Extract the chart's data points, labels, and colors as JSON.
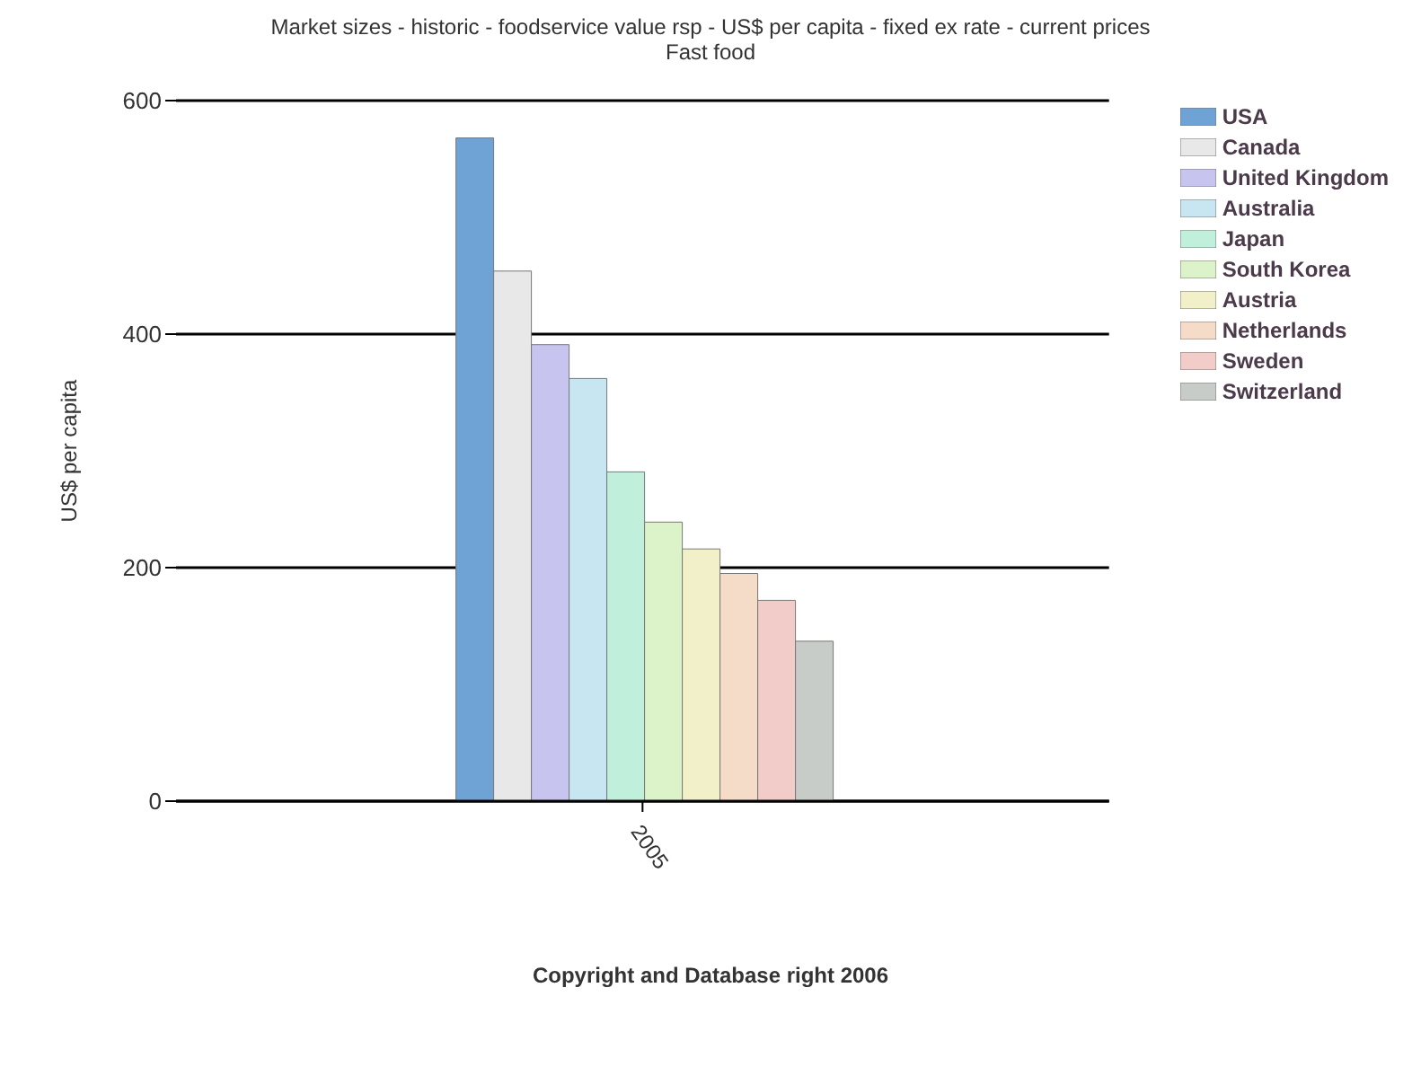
{
  "chart_data": {
    "type": "bar",
    "title": "Market sizes  - historic  - foodservice value rsp  - US$ per capita  - fixed ex rate  - current prices",
    "subtitle": "Fast food",
    "ylabel": "US$ per capita",
    "categories": [
      "2005"
    ],
    "series": [
      {
        "name": "USA",
        "color": "#6fa3d6",
        "values": [
          568
        ]
      },
      {
        "name": "Canada",
        "color": "#e8e8e8",
        "values": [
          454
        ]
      },
      {
        "name": "United Kingdom",
        "color": "#c8c4f0",
        "values": [
          391
        ]
      },
      {
        "name": "Australia",
        "color": "#c8e6f2",
        "values": [
          362
        ]
      },
      {
        "name": "Japan",
        "color": "#c0f0dc",
        "values": [
          282
        ]
      },
      {
        "name": "South Korea",
        "color": "#dcf2c8",
        "values": [
          239
        ]
      },
      {
        "name": "Austria",
        "color": "#f2f0c8",
        "values": [
          216
        ]
      },
      {
        "name": "Netherlands",
        "color": "#f5dcc8",
        "values": [
          195
        ]
      },
      {
        "name": "Sweden",
        "color": "#f2ccc8",
        "values": [
          172
        ]
      },
      {
        "name": "Switzerland",
        "color": "#c8ccc8",
        "values": [
          137
        ]
      }
    ],
    "ylim": [
      0,
      600
    ],
    "yticks": [
      0,
      200,
      400,
      600
    ],
    "grid": "y",
    "legend": "top right",
    "annotations": [
      "Copyright and Database right 2006"
    ]
  }
}
